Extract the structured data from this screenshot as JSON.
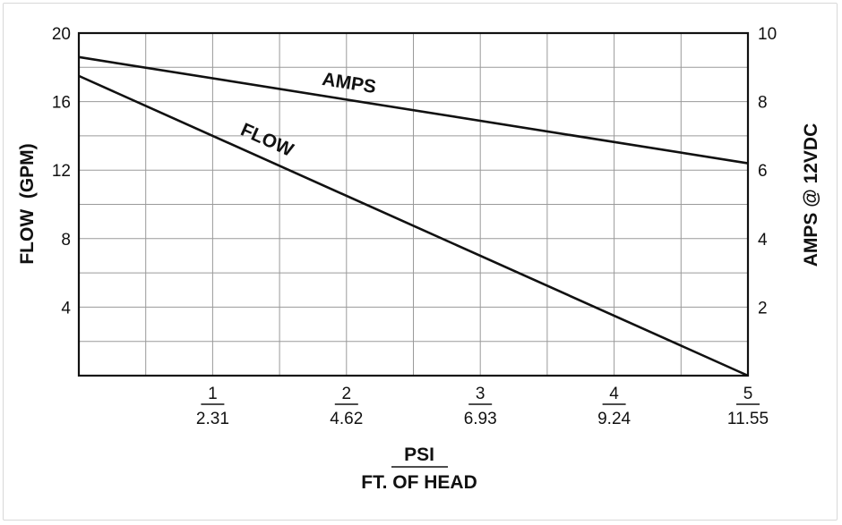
{
  "chart_data": {
    "type": "line",
    "x_ticks_psi": [
      "1",
      "2",
      "3",
      "4",
      "5"
    ],
    "x_ticks_ft_head": [
      "2.31",
      "4.62",
      "6.93",
      "9.24",
      "11.55"
    ],
    "xlabel_top": "PSI",
    "xlabel_bottom": "FT. OF HEAD",
    "ylabel_left": "FLOW  (GPM)",
    "ylabel_right": "AMPS @ 12VDC",
    "y_left_ticks": [
      "20",
      "16",
      "12",
      "8",
      "4"
    ],
    "y_right_ticks": [
      "10",
      "8",
      "6",
      "4",
      "2"
    ],
    "xlim": [
      0,
      5
    ],
    "ylim_left": [
      0,
      20
    ],
    "ylim_right": [
      0,
      10
    ],
    "grid": true,
    "series": [
      {
        "name": "AMPS",
        "axis": "right",
        "x": [
          0,
          5
        ],
        "y": [
          9.3,
          6.2
        ]
      },
      {
        "name": "FLOW",
        "axis": "left",
        "x": [
          0,
          5
        ],
        "y": [
          17.5,
          0
        ]
      }
    ]
  }
}
